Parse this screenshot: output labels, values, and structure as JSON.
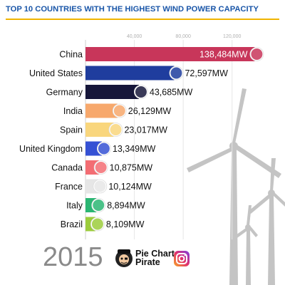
{
  "title": "TOP 10 COUNTRIES WITH THE HIGHEST WIND POWER CAPACITY",
  "year": "2015",
  "brand": {
    "line1": "Pie Chart",
    "line2": "Pirate"
  },
  "chart_data": {
    "type": "bar",
    "orientation": "horizontal",
    "title": "TOP 10 COUNTRIES WITH THE HIGHEST WIND POWER CAPACITY",
    "categories": [
      "China",
      "United States",
      "Germany",
      "India",
      "Spain",
      "United Kingdom",
      "Canada",
      "France",
      "Italy",
      "Brazil"
    ],
    "values": [
      138484,
      72597,
      43685,
      26129,
      23017,
      13349,
      10875,
      10124,
      8894,
      8109
    ],
    "value_labels": [
      "138,484MW",
      "72,597MW",
      "43,685MW",
      "26,129MW",
      "23,017MW",
      "13,349MW",
      "10,875MW",
      "10,124MW",
      "8,894MW",
      "8,109MW"
    ],
    "colors": [
      "#c8365a",
      "#1f3d9e",
      "#16163a",
      "#f7a86c",
      "#f9d67d",
      "#3551d4",
      "#f36d73",
      "#e6e6e6",
      "#2bb673",
      "#9ccc3c"
    ],
    "xticks": [
      40000,
      80000,
      120000
    ],
    "xtick_labels": [
      "40,000",
      "80,000",
      "120,000"
    ],
    "xlim": [
      0,
      140000
    ],
    "grid": true,
    "xlabel": "",
    "ylabel": ""
  },
  "colors": {
    "title": "#1a56a8",
    "title_rule": "#f0b400",
    "year": "#8a8a8a",
    "turbine": "#c4c4c4"
  }
}
